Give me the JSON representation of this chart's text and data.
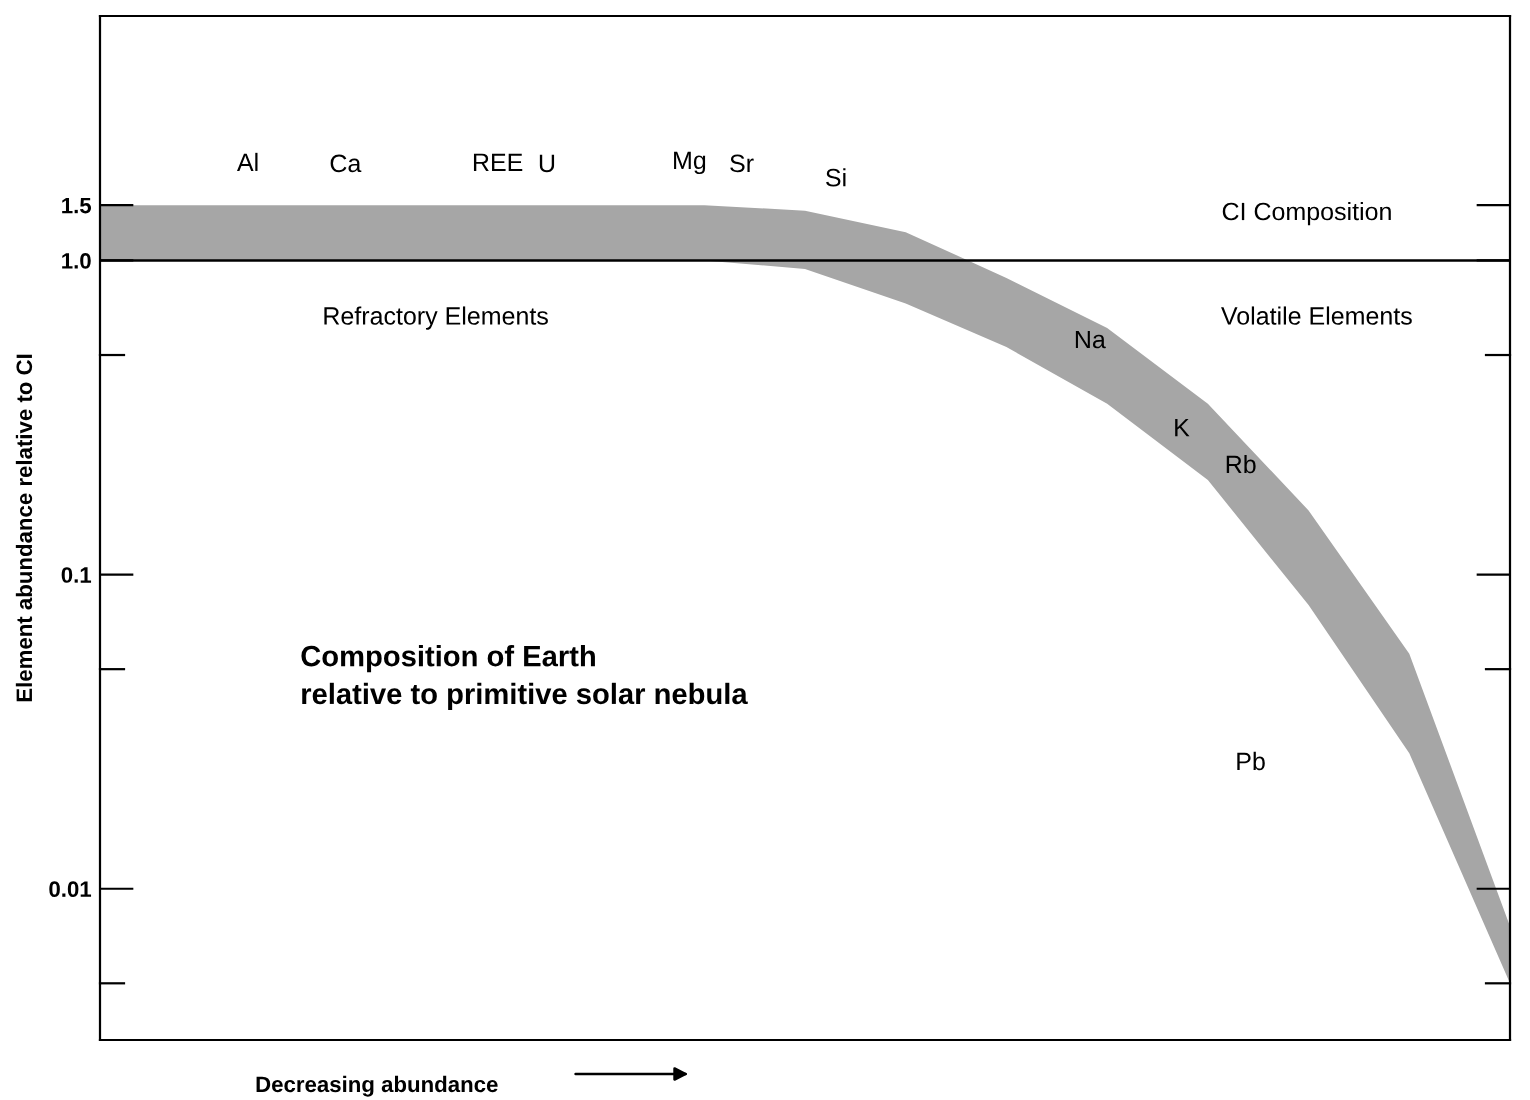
{
  "chart_data": {
    "type": "area",
    "ylabel": "Element abundance relative to CI",
    "xlabel": "Decreasing abundance",
    "categories": [
      null,
      null,
      null,
      null,
      null,
      null,
      null,
      null,
      null,
      null,
      null,
      null,
      null,
      null,
      null
    ],
    "series": [
      {
        "color": "#a6a6a6",
        "values": [
          null,
          null,
          null,
          null,
          null,
          null,
          null,
          null,
          null,
          null,
          null,
          null,
          null,
          null,
          null
        ],
        "upper": [
          1.5,
          1.5,
          1.5,
          1.5,
          1.5,
          1.5,
          1.5,
          1.44,
          1.23,
          0.88,
          0.61,
          0.35,
          0.16,
          0.056,
          0.0076
        ],
        "lower": [
          1.0,
          1.0,
          1.0,
          1.0,
          1.0,
          1.0,
          1.0,
          0.94,
          0.73,
          0.53,
          0.35,
          0.2,
          0.08,
          0.027,
          0.005
        ]
      }
    ],
    "log": "y",
    "ylim": [
      0.0033,
      6
    ],
    "yticks": [
      {
        "value": 0.005,
        "label": null
      },
      0.01,
      {
        "value": 0.05,
        "label": null
      },
      0.1,
      {
        "value": 0.5,
        "label": null
      },
      {
        "value": 1,
        "label": "1.0"
      },
      1.5
    ],
    "ref_lines": [
      {
        "axis": "y",
        "value": 1,
        "color": "#000000"
      }
    ],
    "grid": false,
    "annotations": [
      "Al",
      "Ca",
      "REE",
      "U",
      "Mg",
      "Sr",
      "Si",
      "CI Composition",
      "Refractory Elements",
      "Volatile Elements",
      "Na",
      "K",
      "Rb",
      "Pb",
      "Composition of Earth\nrelative to primitive solar nebula"
    ]
  }
}
